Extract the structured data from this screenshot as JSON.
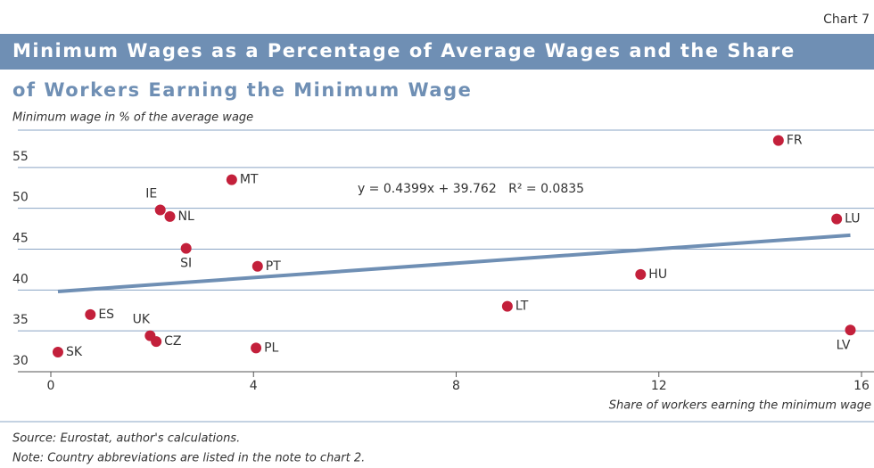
{
  "chart_data": {
    "type": "scatter",
    "chart_label": "Chart 7",
    "title": [
      "Minimum Wages as a Percentage of Average Wages and the Share",
      "of Workers Earning the Minimum Wage"
    ],
    "y_label": "Minimum wage in % of the average wage",
    "x_label": "Share of workers earning the minimum wage",
    "labels": [
      "SK",
      "ES",
      "UK",
      "CZ",
      "IE",
      "NL",
      "SI",
      "MT",
      "PT",
      "PL",
      "LT",
      "HU",
      "FR",
      "LU",
      "LV"
    ],
    "x": [
      0.14,
      0.78,
      1.96,
      2.08,
      2.16,
      2.35,
      2.67,
      3.57,
      4.08,
      4.05,
      9.01,
      11.64,
      14.36,
      15.51,
      15.78
    ],
    "values": [
      32.4,
      37.0,
      34.4,
      33.7,
      49.8,
      49.0,
      45.1,
      53.5,
      42.9,
      32.9,
      38.0,
      41.9,
      58.3,
      48.7,
      35.1
    ],
    "color": "#c3203b",
    "trendline": {
      "slope": 0.4399,
      "intercept": 39.762,
      "label": "y = 0.4399x + 39.762   R² = 0.0835",
      "color": "#6f8fb4"
    },
    "xlim": [
      0,
      16
    ],
    "xticks": [
      0,
      4,
      8,
      12,
      16
    ],
    "ylim": [
      30,
      60
    ],
    "yticks": [
      30,
      35,
      40,
      45,
      50,
      55
    ],
    "grid": true,
    "source": "Source: Eurostat, author's calculations.",
    "note": "Note: Country abbreviations are listed in the note to chart 2."
  }
}
